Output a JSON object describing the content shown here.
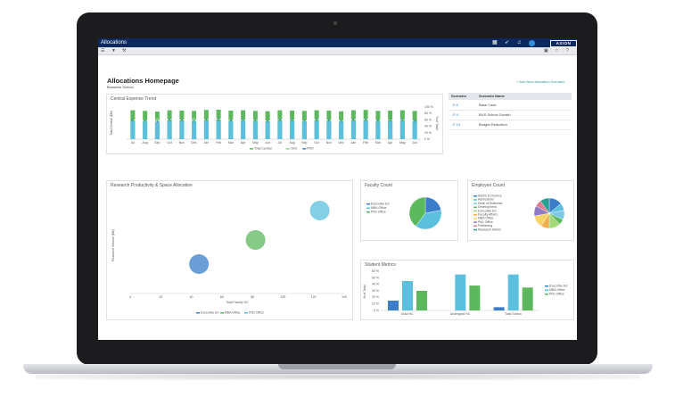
{
  "app": {
    "title": "Allocations",
    "brand": "AXION",
    "icons": [
      "grid-icon",
      "rocket-icon",
      "bell-icon",
      "user-avatar-icon"
    ]
  },
  "toolbar": {
    "icons": [
      "menu-icon",
      "filter-icon",
      "wrench-icon",
      "save-icon",
      "star-icon",
      "help-icon"
    ]
  },
  "page": {
    "title": "Allocations Homepage",
    "subtitle": "Business School",
    "add_link": "+ Add New Allocation Scenario"
  },
  "colors": {
    "navy": "#0c2860",
    "green": "#5cb85c",
    "blue": "#5bc0de",
    "darkblue": "#3a7dc9",
    "teal": "#2aa18f"
  },
  "scenarios": {
    "headers": [
      "Scenario",
      "Scenario Name"
    ],
    "rows": [
      {
        "num": "8",
        "name": "Base Case"
      },
      {
        "num": "9",
        "name": "BUS School Growth"
      },
      {
        "num": "10",
        "name": "Budget Reduction"
      }
    ]
  },
  "chart_data": [
    {
      "type": "bar",
      "title": "Central Expense Trend",
      "ylabel": "Total Central ($M)",
      "y2label": "% of Total",
      "categories": [
        "Jul",
        "Aug",
        "Sep",
        "Oct",
        "Nov",
        "Dec",
        "Jan",
        "Feb",
        "Mar",
        "Apr",
        "May",
        "Jun",
        "Jul",
        "Aug",
        "Sep",
        "Oct",
        "Nov",
        "Dec",
        "Jan",
        "Feb",
        "Mar",
        "Apr",
        "May",
        "Jun"
      ],
      "y2_ticks": [
        "100 %",
        "80 %",
        "60 %",
        "40 %",
        "20 %",
        "0 %"
      ],
      "series": [
        {
          "name": "Total Central",
          "values": [
            90,
            88,
            86,
            90,
            89,
            88,
            91,
            92,
            89,
            90,
            88,
            87,
            90,
            89,
            88,
            90,
            89,
            87,
            90,
            91,
            88,
            89,
            90,
            88
          ]
        },
        {
          "name": "CAO",
          "values": [
            0,
            0,
            12,
            0,
            0,
            14,
            0,
            0,
            0,
            0,
            0,
            0,
            0,
            0,
            0,
            0,
            0,
            0,
            0,
            0,
            0,
            0,
            0,
            0
          ]
        },
        {
          "name": "PRO",
          "values": [
            60,
            58,
            55,
            62,
            60,
            57,
            61,
            63,
            58,
            60,
            59,
            56,
            61,
            60,
            57,
            62,
            59,
            56,
            61,
            62,
            58,
            60,
            61,
            57
          ]
        }
      ],
      "ylim": [
        0,
        100
      ]
    },
    {
      "type": "scatter",
      "title": "Research Productivity & Space Allocation",
      "xlabel": "Total Faculty HC",
      "ylabel": "Research Volume ($M)",
      "xlim": [
        0,
        140
      ],
      "x_ticks": [
        0,
        20,
        40,
        60,
        80,
        100,
        120,
        140
      ],
      "points": [
        {
          "name": "Executive Ed",
          "x": 45,
          "y": 11,
          "color": "#3a7dc9"
        },
        {
          "name": "MBA Office",
          "x": 82,
          "y": 20,
          "color": "#5cb85c"
        },
        {
          "name": "PhD Office",
          "x": 124,
          "y": 31,
          "color": "#5bc0de"
        }
      ],
      "legend": [
        "Executive Ed",
        "MBA Office",
        "PhD Office"
      ]
    },
    {
      "type": "pie",
      "title": "Faculty Count",
      "legend": [
        "Executive Ed",
        "MBA Office",
        "PhD Office"
      ],
      "values": [
        22,
        38,
        40
      ],
      "colors": [
        "#3a7dc9",
        "#5bc0de",
        "#5cb85c"
      ]
    },
    {
      "type": "pie",
      "title": "Employee Count",
      "legend": [
        "Admin & Finance",
        "Admissions",
        "Dean of Business",
        "Development",
        "Executive Ed",
        "Faculty Affairs",
        "MBA Office",
        "PhD Office",
        "Publishing",
        "Research Admin"
      ],
      "values": [
        14,
        8,
        10,
        6,
        12,
        9,
        13,
        11,
        7,
        10
      ],
      "colors": [
        "#3a7dc9",
        "#5bc0de",
        "#7cc6e8",
        "#5cb85c",
        "#a3d977",
        "#f0ad4e",
        "#f6d365",
        "#8e7cc3",
        "#e07b91",
        "#2aa18f"
      ]
    },
    {
      "type": "bar",
      "title": "Student Metrics",
      "ylabel": "% of Total",
      "categories": [
        "Grad HC",
        "Undergrad HC",
        "Total Tuition"
      ],
      "y_ticks": [
        "60 %",
        "50 %",
        "40 %",
        "30 %",
        "20 %",
        "10 %",
        "0 %"
      ],
      "series": [
        {
          "name": "Executive Ed",
          "values": [
            15,
            0,
            5
          ]
        },
        {
          "name": "MBA Office",
          "values": [
            45,
            55,
            55
          ]
        },
        {
          "name": "PhD Office",
          "values": [
            30,
            38,
            35
          ]
        }
      ],
      "ylim": [
        0,
        60
      ]
    }
  ]
}
